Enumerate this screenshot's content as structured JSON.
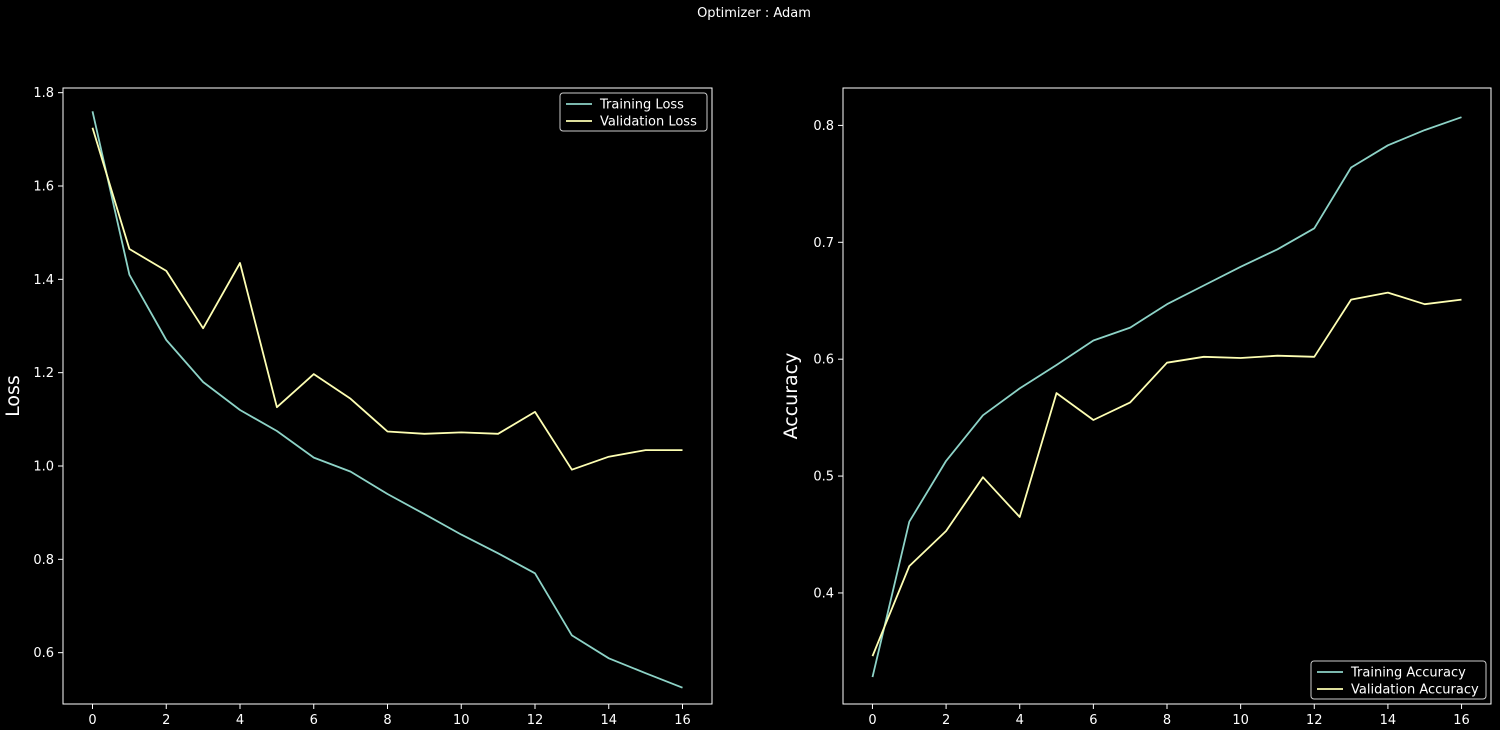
{
  "title": "Optimizer : Adam",
  "colors": {
    "background": "#000000",
    "axes": "#ffffff",
    "training": "#8dd3c7",
    "validation": "#feffb3"
  },
  "chart_data": [
    {
      "type": "line",
      "ylabel": "Loss",
      "xlabel": "",
      "xlim": [
        -0.8,
        16.8
      ],
      "ylim": [
        0.49,
        1.81
      ],
      "xticks": [
        0,
        2,
        4,
        6,
        8,
        10,
        12,
        14,
        16
      ],
      "yticks": [
        0.6,
        0.8,
        1.0,
        1.2,
        1.4,
        1.6,
        1.8
      ],
      "ytick_labels": [
        "0.6",
        "0.8",
        "1.0",
        "1.2",
        "1.4",
        "1.6",
        "1.8"
      ],
      "legend_position": "top-right",
      "x": [
        0,
        1,
        2,
        3,
        4,
        5,
        6,
        7,
        8,
        9,
        10,
        11,
        12,
        13,
        14,
        15,
        16
      ],
      "series": [
        {
          "name": "Training Loss",
          "color_key": "training",
          "values": [
            1.76,
            1.41,
            1.27,
            1.18,
            1.12,
            1.075,
            1.018,
            0.988,
            0.94,
            0.897,
            0.853,
            0.813,
            0.77,
            0.637,
            0.588,
            0.556,
            0.525
          ]
        },
        {
          "name": "Validation Loss",
          "color_key": "validation",
          "values": [
            1.725,
            1.465,
            1.418,
            1.295,
            1.435,
            1.126,
            1.197,
            1.144,
            1.074,
            1.069,
            1.072,
            1.069,
            1.116,
            0.992,
            1.02,
            1.034,
            1.034
          ]
        }
      ]
    },
    {
      "type": "line",
      "ylabel": "Accuracy",
      "xlabel": "",
      "xlim": [
        -0.8,
        16.8
      ],
      "ylim": [
        0.305,
        0.832
      ],
      "xticks": [
        0,
        2,
        4,
        6,
        8,
        10,
        12,
        14,
        16
      ],
      "yticks": [
        0.4,
        0.5,
        0.6,
        0.7,
        0.8
      ],
      "ytick_labels": [
        "0.4",
        "0.5",
        "0.6",
        "0.7",
        "0.8"
      ],
      "legend_position": "bottom-right",
      "x": [
        0,
        1,
        2,
        3,
        4,
        5,
        6,
        7,
        8,
        9,
        10,
        11,
        12,
        13,
        14,
        15,
        16
      ],
      "series": [
        {
          "name": "Training Accuracy",
          "color_key": "training",
          "values": [
            0.328,
            0.461,
            0.513,
            0.552,
            0.575,
            0.595,
            0.616,
            0.627,
            0.647,
            0.663,
            0.679,
            0.694,
            0.712,
            0.764,
            0.783,
            0.796,
            0.807
          ]
        },
        {
          "name": "Validation Accuracy",
          "color_key": "validation",
          "values": [
            0.346,
            0.423,
            0.453,
            0.499,
            0.465,
            0.571,
            0.548,
            0.563,
            0.597,
            0.602,
            0.601,
            0.603,
            0.602,
            0.651,
            0.657,
            0.647,
            0.651
          ]
        }
      ]
    }
  ]
}
